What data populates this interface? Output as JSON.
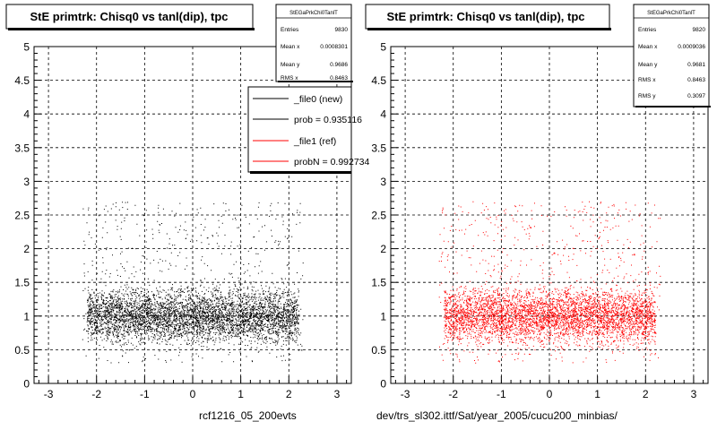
{
  "canvas_background": "#ffffff",
  "frame_background": "#ffffff",
  "footer_left": "rcf1216_05_200evts",
  "footer_right": "dev/trs_sl302.ittf/Sat/year_2005/cucu200_minbias/",
  "chart_data": [
    {
      "type": "scatter",
      "title": "StE primtrk: Chisq0 vs tanl(dip), tpc",
      "xlim": [
        -3.3,
        3.3
      ],
      "ylim": [
        0,
        5
      ],
      "xticks": [
        -3,
        -2,
        -1,
        0,
        1,
        2,
        3
      ],
      "yticks": [
        0,
        0.5,
        1,
        1.5,
        2,
        2.5,
        3,
        3.5,
        4,
        4.5,
        5
      ],
      "ytick_labels": [
        "0",
        "0.5",
        "1",
        "1.5",
        "2",
        "2.5",
        "3",
        "3.5",
        "4",
        "4.5",
        "5"
      ],
      "grid": true,
      "marker_color": "#000000",
      "distribution": {
        "x_core": [
          -2.2,
          2.2
        ],
        "y_center": 1.0,
        "y_core_max": 1.45,
        "y_tail_max": 2.7,
        "n_points": 9830
      },
      "stats": {
        "name": "StEGaPrkChi0TanlT",
        "rows": [
          {
            "label": "Entries",
            "value": "9830"
          },
          {
            "label": "Mean x",
            "value": "0.0008301"
          },
          {
            "label": "Mean y",
            "value": "0.9686"
          },
          {
            "label": "RMS x",
            "value": "0.8463"
          }
        ]
      },
      "legend": {
        "placement": "top-right",
        "entries": [
          {
            "label": "_file0 (new)",
            "color": "#000000"
          },
          {
            "label": "prob = 0.935116",
            "color": "#000000"
          },
          {
            "label": "_file1 (ref)",
            "color": "#ff0000"
          },
          {
            "label": "probN = 0.992734",
            "color": "#ff0000"
          }
        ]
      }
    },
    {
      "type": "scatter",
      "title": "StE primtrk: Chisq0 vs tanl(dip), tpc",
      "xlim": [
        -3.3,
        3.3
      ],
      "ylim": [
        0,
        5
      ],
      "xticks": [
        -3,
        -2,
        -1,
        0,
        1,
        2,
        3
      ],
      "yticks": [
        0,
        0.5,
        1,
        1.5,
        2,
        2.5,
        3,
        3.5,
        4,
        4.5,
        5
      ],
      "ytick_labels": [
        "0",
        "0.5",
        "1",
        "1.5",
        "2",
        "2.5",
        "3",
        "3.5",
        "4",
        "4.5",
        "5"
      ],
      "grid": true,
      "marker_color": "#ff0000",
      "distribution": {
        "x_core": [
          -2.2,
          2.2
        ],
        "y_center": 1.0,
        "y_core_max": 1.45,
        "y_tail_max": 2.7,
        "n_points": 9820
      },
      "stats": {
        "name": "StEGaPrkChi0TanlT",
        "rows": [
          {
            "label": "Entries",
            "value": "9820"
          },
          {
            "label": "Mean x",
            "value": "0.0009036"
          },
          {
            "label": "Mean y",
            "value": "0.9681"
          },
          {
            "label": "RMS x",
            "value": "0.8463"
          },
          {
            "label": "RMS y",
            "value": "0.3097"
          }
        ]
      }
    }
  ]
}
